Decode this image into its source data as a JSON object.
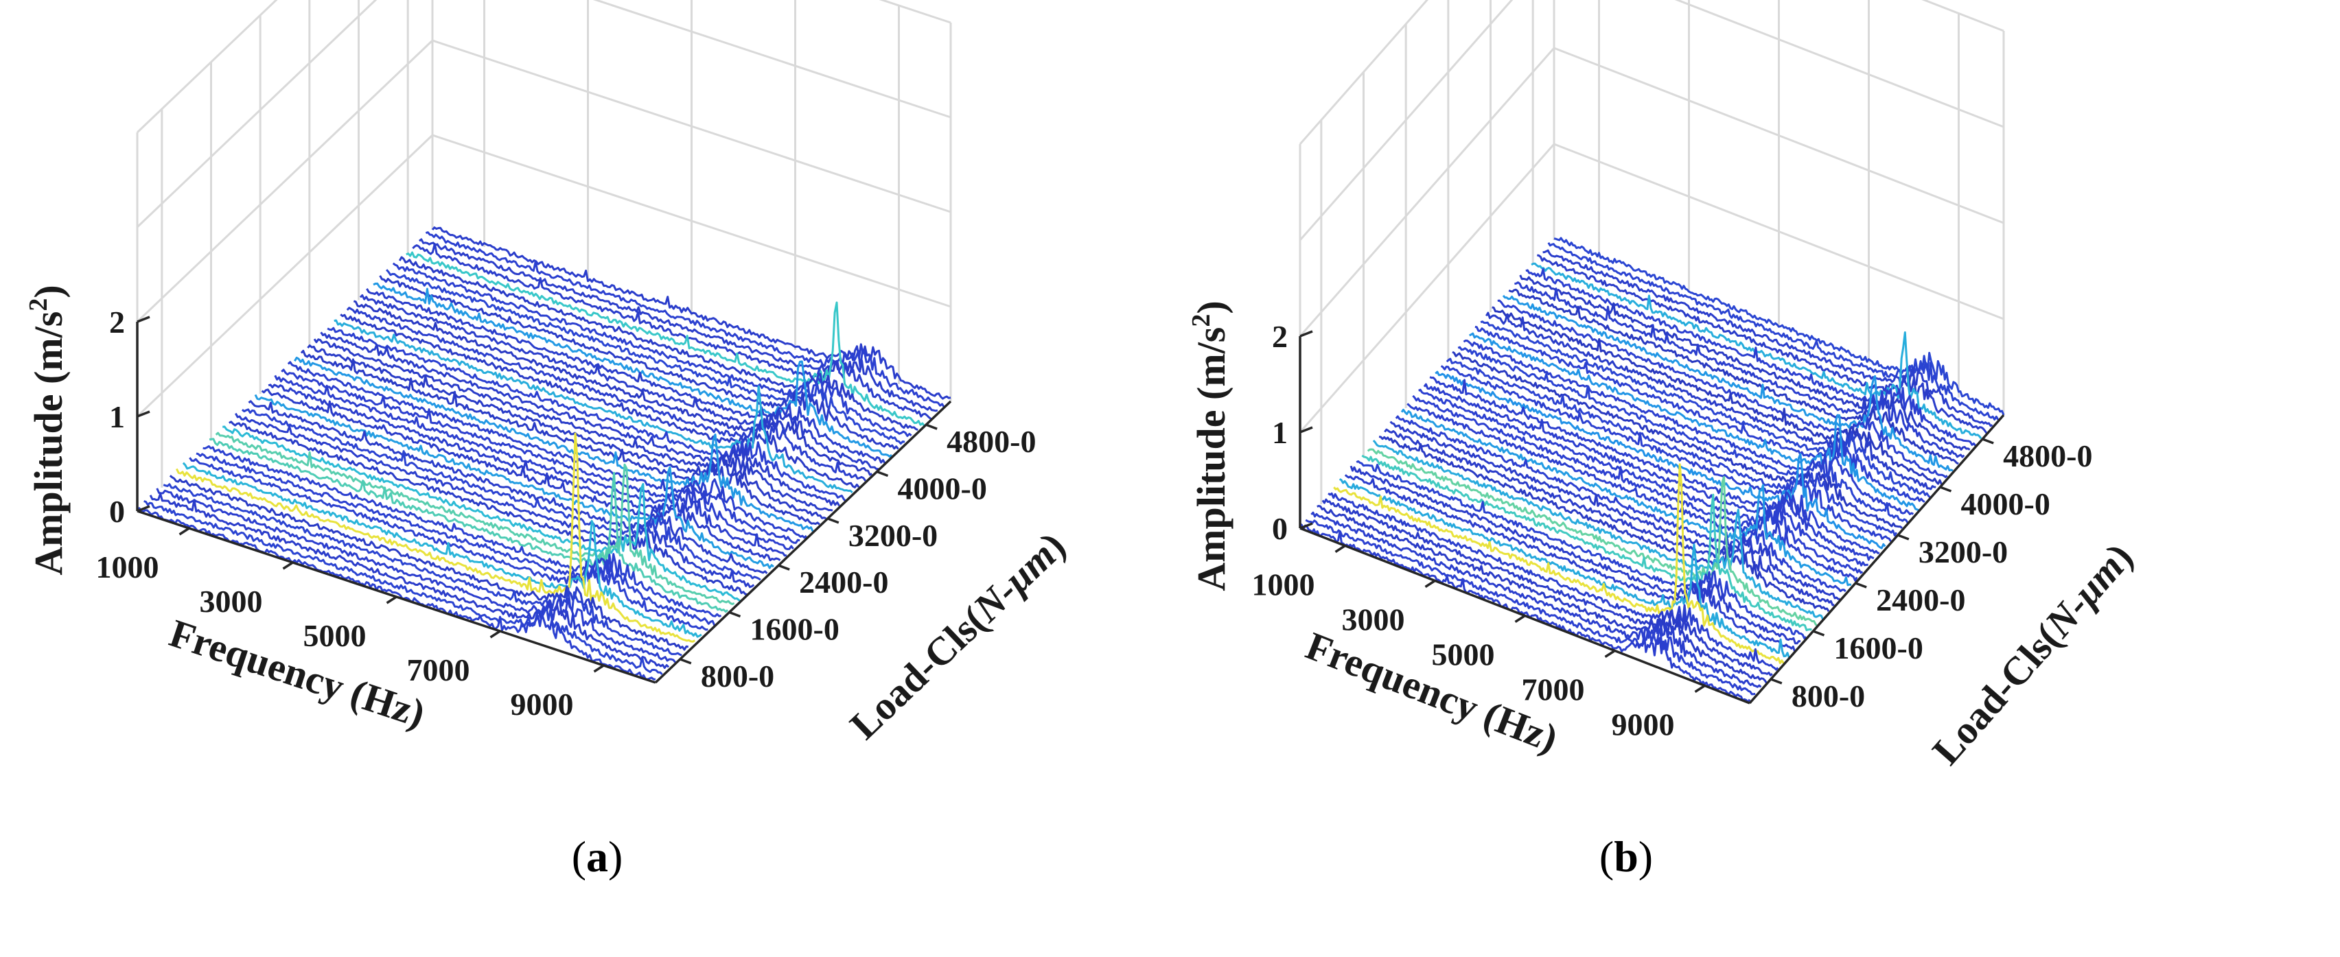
{
  "figure": {
    "panels": [
      {
        "id": "a",
        "caption_open": "(",
        "caption_letter": "a",
        "caption_close": ")"
      },
      {
        "id": "b",
        "caption_open": "(",
        "caption_letter": "b",
        "caption_close": ")"
      }
    ]
  },
  "chart_data": [
    {
      "type": "waterfall-3d",
      "panel": "a",
      "zlabel_main": "Amplitude (m/s",
      "zlabel_sup": "2",
      "zlabel_close": ")",
      "xlabel": "Frequency (Hz)",
      "ylabel_main": "Load-Cls(",
      "ylabel_italic": "N-μm",
      "ylabel_close": ")",
      "x_ticks": [
        "1000",
        "3000",
        "5000",
        "7000",
        "9000"
      ],
      "x_tick_values": [
        1000,
        3000,
        5000,
        7000,
        9000
      ],
      "xlim": [
        0,
        10000
      ],
      "y_ticks": [
        "800-0",
        "1600-0",
        "2400-0",
        "3200-0",
        "4000-0",
        "4800-0"
      ],
      "z_ticks": [
        "0",
        "1",
        "2"
      ],
      "z_tick_values": [
        0,
        1,
        2
      ],
      "zlim": [
        0,
        4
      ],
      "load_classes": 46,
      "colormap": [
        "#1a1a78",
        "#2b3fd0",
        "#1f8fe8",
        "#2ec4d2",
        "#7ed88c",
        "#e8e23c"
      ],
      "baseline_amplitude": 0.05,
      "peaks": [
        {
          "frequency": 7700,
          "load_index": 6,
          "amplitude": 1.6
        },
        {
          "frequency": 7900,
          "load_index": 7,
          "amplitude": 0.6
        },
        {
          "frequency": 7800,
          "load_index": 11,
          "amplitude": 0.8
        },
        {
          "frequency": 7900,
          "load_index": 12,
          "amplitude": 1.05
        },
        {
          "frequency": 8100,
          "load_index": 13,
          "amplitude": 0.65
        },
        {
          "frequency": 8000,
          "load_index": 18,
          "amplitude": 0.55
        },
        {
          "frequency": 8100,
          "load_index": 24,
          "amplitude": 0.55
        },
        {
          "frequency": 8200,
          "load_index": 30,
          "amplitude": 0.6
        },
        {
          "frequency": 8250,
          "load_index": 36,
          "amplitude": 0.55
        },
        {
          "frequency": 8300,
          "load_index": 41,
          "amplitude": 0.7
        }
      ]
    },
    {
      "type": "waterfall-3d",
      "panel": "b",
      "zlabel_main": "Amplitude (m/s",
      "zlabel_sup": "2",
      "zlabel_close": ")",
      "xlabel": "Frequency (Hz)",
      "ylabel_main": "Load-Cls(",
      "ylabel_italic": "N-μm",
      "ylabel_close": ")",
      "x_ticks": [
        "1000",
        "3000",
        "5000",
        "7000",
        "9000"
      ],
      "x_tick_values": [
        1000,
        3000,
        5000,
        7000,
        9000
      ],
      "xlim": [
        0,
        10000
      ],
      "y_ticks": [
        "800-0",
        "1600-0",
        "2400-0",
        "3200-0",
        "4000-0",
        "4800-0"
      ],
      "z_ticks": [
        "0",
        "1",
        "2"
      ],
      "z_tick_values": [
        0,
        1,
        2
      ],
      "zlim": [
        0,
        4
      ],
      "load_classes": 46,
      "colormap": [
        "#1a1a78",
        "#2b3fd0",
        "#1f8fe8",
        "#2ec4d2",
        "#7ed88c",
        "#e8e23c"
      ],
      "baseline_amplitude": 0.05,
      "peaks": [
        {
          "frequency": 7700,
          "load_index": 6,
          "amplitude": 1.55
        },
        {
          "frequency": 7900,
          "load_index": 7,
          "amplitude": 0.55
        },
        {
          "frequency": 7800,
          "load_index": 11,
          "amplitude": 0.75
        },
        {
          "frequency": 7900,
          "load_index": 12,
          "amplitude": 0.95
        },
        {
          "frequency": 8100,
          "load_index": 13,
          "amplitude": 0.6
        },
        {
          "frequency": 8000,
          "load_index": 18,
          "amplitude": 0.5
        },
        {
          "frequency": 8100,
          "load_index": 24,
          "amplitude": 0.5
        },
        {
          "frequency": 8200,
          "load_index": 30,
          "amplitude": 0.55
        },
        {
          "frequency": 8250,
          "load_index": 36,
          "amplitude": 0.5
        },
        {
          "frequency": 8300,
          "load_index": 41,
          "amplitude": 0.65
        }
      ]
    }
  ]
}
